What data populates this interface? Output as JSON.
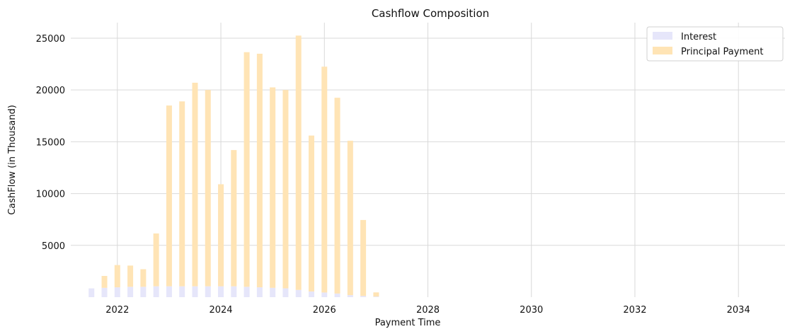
{
  "chart_data": {
    "type": "bar",
    "stacked": true,
    "title": "Cashflow Composition",
    "xlabel": "Payment Time",
    "ylabel": "CashFlow (in Thousand)",
    "xlim": [
      2021.1,
      2034.9
    ],
    "ylim": [
      0,
      26500
    ],
    "xticks": [
      2022,
      2024,
      2026,
      2028,
      2030,
      2032,
      2034
    ],
    "yticks": [
      5000,
      10000,
      15000,
      20000,
      25000
    ],
    "grid": true,
    "legend_position": "top-right",
    "x": [
      2021.5,
      2021.75,
      2022.0,
      2022.25,
      2022.5,
      2022.75,
      2023.0,
      2023.25,
      2023.5,
      2023.75,
      2024.0,
      2024.25,
      2024.5,
      2024.75,
      2025.0,
      2025.25,
      2025.5,
      2025.75,
      2026.0,
      2026.25,
      2026.5,
      2026.75,
      2027.0
    ],
    "series": [
      {
        "name": "Interest",
        "color": "#e6e6fa",
        "values": [
          850,
          900,
          950,
          1000,
          1000,
          1050,
          1050,
          1050,
          1050,
          1050,
          1050,
          1050,
          1000,
          950,
          900,
          850,
          700,
          550,
          450,
          350,
          200,
          120,
          60
        ]
      },
      {
        "name": "Principal Payment",
        "color": "#ffe4b5",
        "values": [
          0,
          1150,
          2150,
          2050,
          1700,
          5100,
          17450,
          17850,
          19650,
          18950,
          9850,
          13150,
          22650,
          22550,
          19350,
          19150,
          24550,
          15050,
          21800,
          18900,
          14900,
          7330,
          400
        ]
      }
    ]
  }
}
